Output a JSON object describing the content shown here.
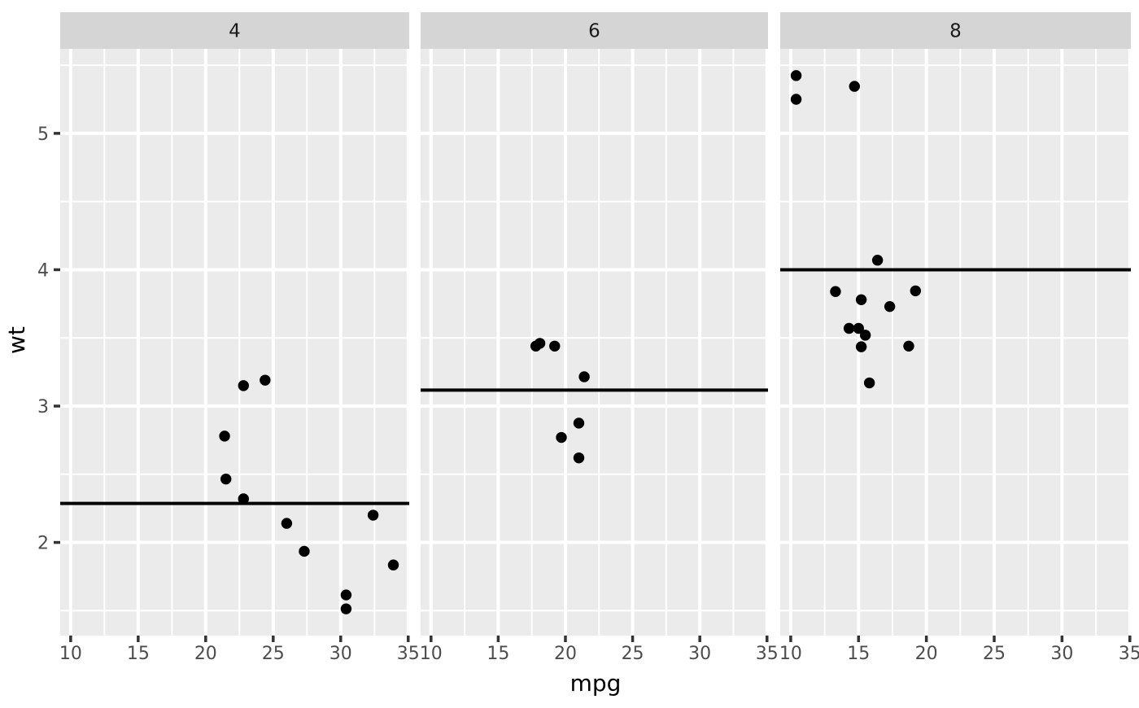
{
  "figure": {
    "background": "#FFFFFF"
  },
  "colors": {
    "panel_bg": "#EBEBEB",
    "strip_bg": "#D5D5D5",
    "grid": "#FFFFFF",
    "point": "#000000",
    "hline": "#000000",
    "axis_text": "#4D4D4D",
    "strip_text": "#1A1A1A",
    "tick_mark": "#333333",
    "axis_title": "#000000"
  },
  "chart_data": {
    "type": "scatter",
    "title": "",
    "xlabel": "mpg",
    "ylabel": "wt",
    "grid": true,
    "legend": "none",
    "xlim": [
      9.225,
      35.075
    ],
    "ylim": [
      1.317,
      5.62
    ],
    "x_major_ticks": [
      10,
      15,
      20,
      25,
      30,
      35
    ],
    "x_tick_labels": [
      "10",
      "15",
      "20",
      "25",
      "30",
      "35"
    ],
    "x_minor_ticks": [
      12.5,
      17.5,
      22.5,
      27.5,
      32.5
    ],
    "y_major_ticks": [
      2,
      3,
      4,
      5
    ],
    "y_tick_labels": [
      "2",
      "3",
      "4",
      "5"
    ],
    "y_minor_ticks": [
      1.5,
      2.5,
      3.5,
      4.5,
      5.5
    ],
    "facets": [
      {
        "label": "4",
        "hline_y": 2.2857,
        "points": [
          [
            22.8,
            2.32
          ],
          [
            24.4,
            3.19
          ],
          [
            22.8,
            3.15
          ],
          [
            32.4,
            2.2
          ],
          [
            30.4,
            1.615
          ],
          [
            33.9,
            1.835
          ],
          [
            21.5,
            2.465
          ],
          [
            27.3,
            1.935
          ],
          [
            26.0,
            2.14
          ],
          [
            30.4,
            1.513
          ],
          [
            21.4,
            2.78
          ]
        ]
      },
      {
        "label": "6",
        "hline_y": 3.1171,
        "points": [
          [
            21.0,
            2.62
          ],
          [
            21.0,
            2.875
          ],
          [
            21.4,
            3.215
          ],
          [
            18.1,
            3.46
          ],
          [
            19.2,
            3.44
          ],
          [
            17.8,
            3.44
          ],
          [
            19.7,
            2.77
          ]
        ]
      },
      {
        "label": "8",
        "hline_y": 3.9993,
        "points": [
          [
            18.7,
            3.44
          ],
          [
            14.3,
            3.57
          ],
          [
            16.4,
            4.07
          ],
          [
            17.3,
            3.73
          ],
          [
            15.2,
            3.78
          ],
          [
            10.4,
            5.25
          ],
          [
            10.4,
            5.424
          ],
          [
            14.7,
            5.345
          ],
          [
            15.5,
            3.52
          ],
          [
            15.2,
            3.435
          ],
          [
            13.3,
            3.84
          ],
          [
            19.2,
            3.845
          ],
          [
            15.8,
            3.17
          ],
          [
            15.0,
            3.57
          ]
        ]
      }
    ]
  }
}
